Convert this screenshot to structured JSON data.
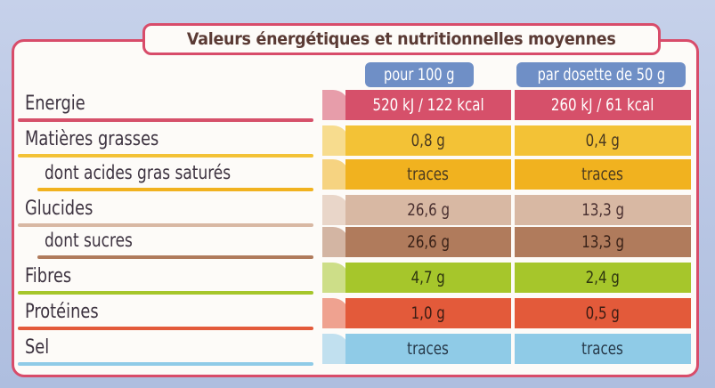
{
  "title": "Valeurs énergétiques et nutritionnelles moyennes",
  "columns": [
    "pour 100 g",
    "par dosette de 50 g"
  ],
  "rows": [
    {
      "label": "Energie",
      "v1": "520 kJ / 122 kcal",
      "v2": "260 kJ / 61 kcal",
      "color": "#d6506a",
      "text_color": "#ffffff"
    },
    {
      "label": "Matières grasses",
      "v1": "0,8 g",
      "v2": "0,4 g",
      "color": "#f3c236",
      "text_color": "#4a3a20"
    },
    {
      "label": "dont acides gras saturés",
      "v1": "traces",
      "v2": "traces",
      "color": "#f1b21f",
      "text_color": "#4a3a20"
    },
    {
      "label": "Glucides",
      "v1": "26,6 g",
      "v2": "13,3 g",
      "color": "#d8b8a3",
      "text_color": "#4a3030"
    },
    {
      "label": "dont sucres",
      "v1": "26,6 g",
      "v2": "13,3 g",
      "color": "#b07b5c",
      "text_color": "#3a2218"
    },
    {
      "label": "Fibres",
      "v1": "4,7 g",
      "v2": "2,4 g",
      "color": "#a6c62b",
      "text_color": "#2e3610"
    },
    {
      "label": "Protéines",
      "v1": "1,0 g",
      "v2": "0,5 g",
      "color": "#e35a3a",
      "text_color": "#3a1c14"
    },
    {
      "label": "Sel",
      "v1": "traces",
      "v2": "traces",
      "color": "#8fcbe7",
      "text_color": "#263848"
    }
  ]
}
